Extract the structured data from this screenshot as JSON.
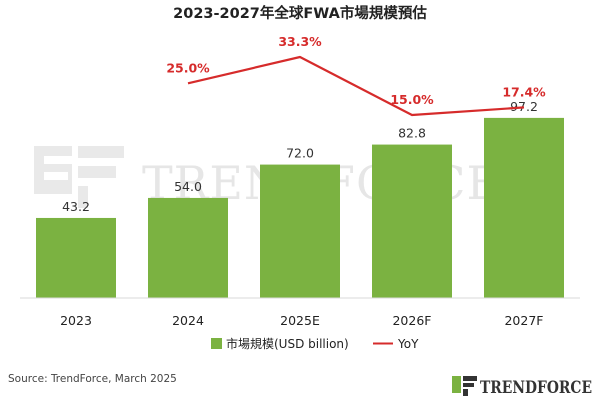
{
  "title": "2023-2027年全球FWA市場規模預估",
  "watermark": "TRENDFORCE",
  "logo": "TRENDFORCE",
  "source": "Source: TrendForce, March 2025",
  "colors": {
    "bar": "#7bb241",
    "line": "#d62b2b"
  },
  "chart_data": {
    "type": "bar",
    "categories": [
      "2023",
      "2024",
      "2025E",
      "2026F",
      "2027F"
    ],
    "series": [
      {
        "name": "市場規模(USD billion)",
        "type": "bar",
        "values": [
          43.2,
          54.0,
          72.0,
          82.8,
          97.2
        ],
        "labels": [
          "43.2",
          "54.0",
          "72.0",
          "82.8",
          "97.2"
        ]
      },
      {
        "name": "YoY",
        "type": "line",
        "values": [
          null,
          25.0,
          33.3,
          15.0,
          17.4
        ],
        "labels": [
          "",
          "25.0%",
          "33.3%",
          "15.0%",
          "17.4%"
        ]
      }
    ],
    "title": "2023-2027年全球FWA市場規模預估",
    "legend": "bottom",
    "grid": false
  }
}
